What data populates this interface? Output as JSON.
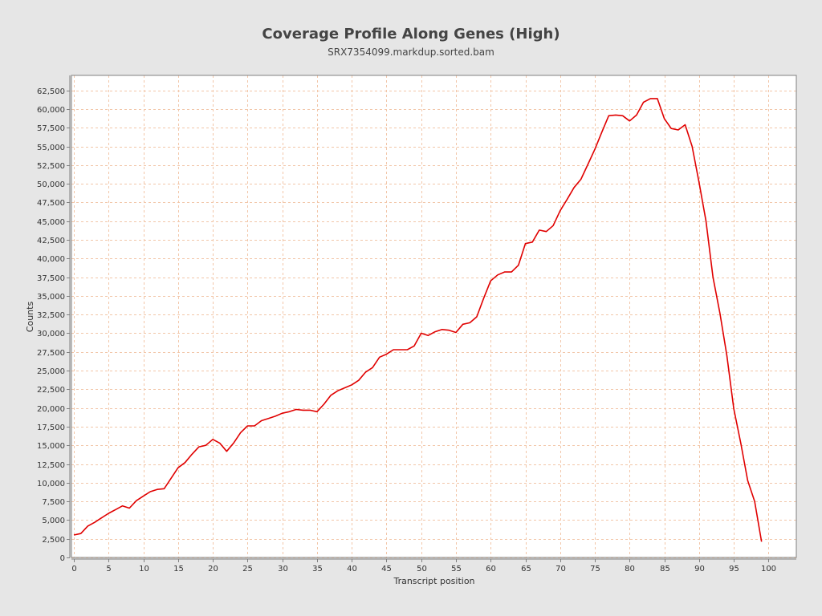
{
  "chart_data": {
    "type": "line",
    "title": "Coverage Profile Along Genes (High)",
    "subtitle": "SRX7354099.markdup.sorted.bam",
    "xlabel": "Transcript position",
    "ylabel": "Counts",
    "xlim": [
      0,
      104
    ],
    "ylim": [
      0,
      64500
    ],
    "x_ticks": [
      0,
      5,
      10,
      15,
      20,
      25,
      30,
      35,
      40,
      45,
      50,
      55,
      60,
      65,
      70,
      75,
      80,
      85,
      90,
      95,
      100
    ],
    "x_tick_labels": [
      "0",
      "5",
      "10",
      "15",
      "20",
      "25",
      "30",
      "35",
      "40",
      "45",
      "50",
      "55",
      "60",
      "65",
      "70",
      "75",
      "80",
      "85",
      "90",
      "95",
      "100"
    ],
    "y_ticks": [
      0,
      2500,
      5000,
      7500,
      10000,
      12500,
      15000,
      17500,
      20000,
      22500,
      25000,
      27500,
      30000,
      32500,
      35000,
      37500,
      40000,
      42500,
      45000,
      47500,
      50000,
      52500,
      55000,
      57500,
      60000,
      62500
    ],
    "y_tick_labels": [
      "0",
      "2,500",
      "5,000",
      "7,500",
      "10,000",
      "12,500",
      "15,000",
      "17,500",
      "20,000",
      "22,500",
      "25,000",
      "27,500",
      "30,000",
      "32,500",
      "35,000",
      "37,500",
      "40,000",
      "42,500",
      "45,000",
      "47,500",
      "50,000",
      "52,500",
      "55,000",
      "57,500",
      "60,000",
      "62,500"
    ],
    "grid": true,
    "legend": false,
    "colors": {
      "background": "#e6e6e6",
      "plot_background": "#ffffff",
      "grid": "#f2c6a8",
      "line": "#e00000",
      "text": "#333333"
    },
    "series": [
      {
        "x": [
          0,
          1,
          2,
          3,
          4,
          5,
          6,
          7,
          8,
          9,
          10,
          11,
          12,
          13,
          14,
          15,
          16,
          17,
          18,
          19,
          20,
          21,
          22,
          23,
          24,
          25,
          26,
          27,
          28,
          29,
          30,
          31,
          32,
          33,
          34,
          35,
          36,
          37,
          38,
          39,
          40,
          41,
          42,
          43,
          44,
          45,
          46,
          47,
          48,
          49,
          50,
          51,
          52,
          53,
          54,
          55,
          56,
          57,
          58,
          59,
          60,
          61,
          62,
          63,
          64,
          65,
          66,
          67,
          68,
          69,
          70,
          71,
          72,
          73,
          74,
          75,
          76,
          77,
          78,
          79,
          80,
          81,
          82,
          83,
          84,
          85,
          86,
          87,
          88,
          89,
          90,
          91,
          92,
          93,
          94,
          95,
          96,
          97,
          98,
          99
        ],
        "values": [
          3000,
          3200,
          4200,
          4700,
          5300,
          5900,
          6400,
          6900,
          6600,
          7600,
          8200,
          8800,
          9100,
          9200,
          10600,
          12000,
          12700,
          13800,
          14800,
          15000,
          15800,
          15300,
          14200,
          15300,
          16700,
          17600,
          17600,
          18300,
          18600,
          18900,
          19300,
          19500,
          19800,
          19700,
          19700,
          19500,
          20500,
          21700,
          22300,
          22700,
          23100,
          23700,
          24800,
          25400,
          26800,
          27200,
          27800,
          27800,
          27800,
          28300,
          30000,
          29700,
          30200,
          30500,
          30400,
          30100,
          31200,
          31400,
          32200,
          34700,
          37000,
          37800,
          38200,
          38200,
          39100,
          42000,
          42200,
          43800,
          43600,
          44400,
          46400,
          47900,
          49500,
          50600,
          52600,
          54600,
          56900,
          59100,
          59200,
          59100,
          58400,
          59200,
          60900,
          61400,
          61400,
          58700,
          57400,
          57200,
          57900,
          55000,
          50200,
          45000,
          37500,
          32700,
          27000,
          19900,
          15300,
          10300,
          7500,
          2100
        ]
      }
    ]
  }
}
